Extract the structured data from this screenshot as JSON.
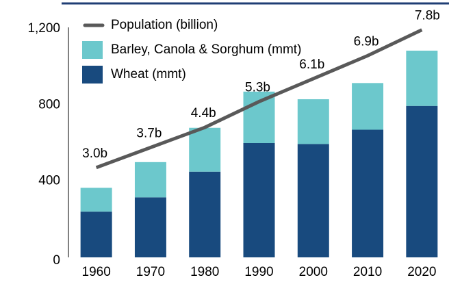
{
  "chart_data": {
    "type": "bar",
    "stacked": true,
    "categories": [
      "1960",
      "1970",
      "1980",
      "1990",
      "2000",
      "2010",
      "2020"
    ],
    "series": [
      {
        "name": "Wheat (mmt)",
        "color": "#184a7e",
        "values": [
          240,
          315,
          450,
          600,
          595,
          670,
          795
        ]
      },
      {
        "name": "Barley, Canola & Sorghum (mmt)",
        "color": "#6cc8cc",
        "values": [
          125,
          185,
          230,
          270,
          235,
          245,
          290
        ]
      },
      {
        "name": "Population (billion)",
        "color": "#595959",
        "type": "line",
        "axis": "y2",
        "values": [
          3.0,
          3.7,
          4.4,
          5.3,
          6.1,
          6.9,
          7.8
        ],
        "value_labels": [
          "3.0b",
          "3.7b",
          "4.4b",
          "5.3b",
          "6.1b",
          "6.9b",
          "7.8b"
        ]
      }
    ],
    "ylim": [
      0,
      1200
    ],
    "yticks": [
      0,
      400,
      800,
      {
        "value": 1200,
        "label": "1,200"
      }
    ],
    "y2lim": [
      -0.13,
      7.84
    ],
    "legend": "upper-left",
    "grid": false
  }
}
